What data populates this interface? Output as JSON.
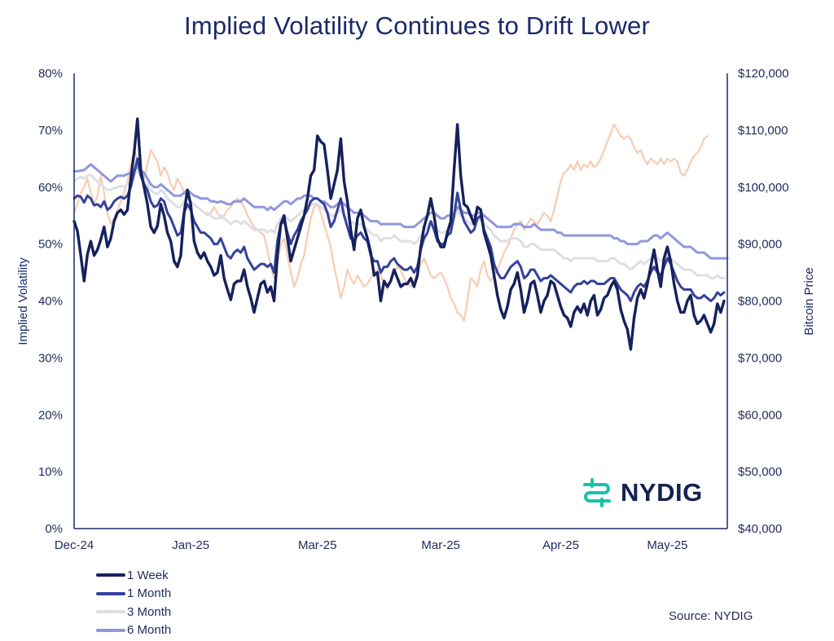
{
  "chart_data": {
    "type": "line",
    "title": "Implied Volatility Continues to Drift Lower",
    "ylabel": "Implied Volatility",
    "y2label": "Bitcoin Price",
    "ylim": [
      0,
      80
    ],
    "y2lim": [
      40000,
      120000
    ],
    "y_ticks": [
      "0%",
      "10%",
      "20%",
      "30%",
      "40%",
      "50%",
      "60%",
      "70%",
      "80%"
    ],
    "y2_ticks": [
      "$40,000",
      "$50,000",
      "$60,000",
      "$70,000",
      "$80,000",
      "$90,000",
      "$100,000",
      "$110,000",
      "$120,000"
    ],
    "x_ticks": [
      "Dec-24",
      "Jan-25",
      "Mar-25",
      "Mar-25",
      "Apr-25",
      "May-25"
    ],
    "x_tick_index": [
      0,
      35,
      73,
      110,
      146,
      178
    ],
    "grid": false,
    "legend_position": "bottom-left",
    "source": "Source: NYDIG",
    "series": [
      {
        "name": "1 Week",
        "color": "#15215c",
        "values": [
          54.0,
          52.3,
          48.0,
          43.5,
          48.2,
          50.5,
          48.0,
          49.0,
          50.8,
          53.0,
          49.5,
          51.0,
          54.0,
          55.5,
          56.0,
          55.2,
          56.0,
          61.5,
          66.0,
          72.0,
          63.0,
          60.0,
          57.0,
          53.0,
          52.0,
          53.2,
          57.0,
          55.0,
          52.0,
          50.5,
          47.0,
          46.0,
          48.0,
          55.5,
          59.5,
          57.0,
          50.5,
          48.5,
          47.5,
          48.5,
          47.0,
          46.0,
          44.5,
          45.0,
          48.0,
          44.0,
          42.0,
          40.2,
          43.0,
          43.5,
          43.5,
          45.5,
          42.5,
          40.5,
          38.0,
          40.5,
          43.0,
          43.5,
          41.5,
          42.5,
          40.0,
          48.0,
          53.5,
          55.0,
          51.0,
          47.0,
          49.0,
          51.0,
          53.0,
          55.0,
          58.0,
          62.0,
          63.0,
          69.0,
          68.0,
          67.5,
          63.0,
          58.0,
          60.5,
          63.0,
          68.5,
          61.0,
          57.5,
          52.5,
          49.0,
          54.5,
          56.0,
          53.0,
          51.0,
          48.5,
          44.5,
          45.0,
          40.0,
          43.5,
          42.5,
          43.5,
          45.5,
          44.0,
          42.5,
          43.0,
          43.0,
          44.0,
          42.5,
          44.5,
          49.5,
          53.0,
          55.0,
          58.0,
          55.0,
          51.0,
          49.5,
          49.5,
          52.0,
          54.0,
          63.0,
          71.0,
          62.0,
          57.0,
          56.5,
          55.0,
          53.5,
          56.5,
          56.0,
          52.0,
          50.0,
          48.0,
          44.5,
          41.0,
          38.5,
          37.0,
          39.0,
          42.0,
          43.0,
          45.0,
          42.0,
          38.0,
          40.0,
          43.0,
          43.5,
          41.0,
          38.0,
          40.0,
          41.0,
          43.5,
          43.0,
          41.0,
          39.0,
          37.5,
          37.0,
          35.5,
          38.0,
          39.0,
          38.0,
          39.5,
          37.5,
          40.0,
          41.0,
          37.5,
          38.5,
          40.5,
          41.0,
          42.5,
          43.5,
          42.0,
          38.5,
          36.5,
          35.0,
          31.5,
          37.0,
          40.5,
          42.0,
          40.5,
          43.0,
          46.0,
          49.0,
          45.5,
          42.5,
          47.5,
          49.5,
          47.0,
          43.0,
          40.0,
          38.0,
          38.0,
          40.0,
          41.0,
          37.5,
          36.0,
          36.5,
          37.5,
          36.0,
          34.5,
          36.0,
          39.5,
          38.0,
          40.0
        ]
      },
      {
        "name": "1 Month",
        "color": "#34419a",
        "values": [
          58.0,
          58.5,
          58.3,
          57.3,
          58.5,
          58.0,
          56.8,
          57.0,
          56.5,
          57.5,
          56.0,
          56.5,
          57.5,
          58.0,
          58.3,
          58.0,
          58.5,
          60.0,
          62.5,
          65.0,
          62.0,
          60.5,
          59.5,
          57.5,
          56.5,
          56.8,
          58.0,
          57.5,
          55.5,
          54.5,
          53.0,
          51.5,
          52.0,
          55.5,
          57.0,
          56.0,
          54.0,
          53.0,
          52.0,
          52.0,
          51.5,
          51.0,
          50.0,
          50.0,
          51.0,
          49.5,
          48.0,
          47.5,
          48.5,
          49.0,
          48.5,
          49.5,
          47.5,
          46.5,
          45.5,
          46.0,
          46.5,
          46.5,
          46.0,
          46.5,
          45.0,
          50.5,
          53.5,
          54.0,
          52.0,
          50.0,
          51.5,
          52.5,
          54.0,
          55.0,
          56.0,
          57.5,
          58.0,
          58.0,
          57.5,
          57.0,
          55.5,
          53.0,
          54.0,
          56.0,
          58.0,
          55.0,
          53.0,
          51.0,
          50.5,
          51.5,
          52.0,
          51.0,
          50.5,
          48.0,
          47.0,
          47.0,
          45.0,
          46.0,
          46.0,
          47.0,
          47.5,
          46.5,
          46.0,
          45.5,
          45.5,
          46.0,
          45.0,
          46.0,
          49.0,
          51.0,
          52.0,
          54.0,
          52.5,
          50.5,
          50.0,
          50.0,
          51.5,
          52.0,
          55.0,
          59.0,
          56.0,
          54.0,
          53.0,
          52.0,
          52.5,
          54.5,
          55.0,
          52.5,
          51.0,
          49.5,
          46.5,
          45.0,
          44.0,
          44.0,
          45.0,
          46.0,
          46.5,
          47.0,
          46.0,
          44.0,
          44.5,
          45.5,
          45.5,
          44.5,
          43.5,
          44.0,
          44.0,
          44.5,
          44.0,
          43.5,
          43.0,
          42.5,
          42.0,
          41.5,
          42.5,
          43.0,
          43.0,
          43.5,
          43.0,
          43.5,
          43.5,
          43.0,
          43.0,
          43.0,
          43.5,
          44.0,
          44.0,
          43.0,
          42.0,
          41.5,
          41.0,
          40.0,
          41.5,
          42.5,
          43.0,
          42.5,
          43.5,
          45.0,
          46.0,
          45.0,
          44.5,
          46.0,
          47.5,
          46.5,
          45.0,
          43.5,
          42.5,
          42.0,
          42.0,
          42.0,
          41.0,
          40.5,
          40.5,
          41.0,
          40.5,
          40.0,
          40.5,
          41.5,
          41.0,
          41.5
        ]
      },
      {
        "name": "3 Month",
        "color": "#dedfe4",
        "values": [
          61.0,
          61.5,
          61.8,
          61.5,
          62.0,
          62.2,
          61.5,
          61.0,
          60.5,
          60.0,
          59.5,
          59.5,
          59.8,
          60.0,
          60.2,
          60.0,
          60.5,
          61.0,
          62.0,
          63.0,
          62.0,
          61.0,
          60.5,
          59.5,
          59.0,
          58.8,
          59.5,
          59.0,
          58.0,
          57.5,
          57.0,
          56.5,
          56.5,
          57.5,
          58.0,
          57.5,
          57.0,
          56.5,
          56.0,
          55.5,
          55.5,
          55.0,
          54.5,
          54.5,
          55.0,
          54.5,
          54.0,
          53.5,
          54.0,
          54.0,
          53.5,
          54.0,
          53.5,
          53.0,
          52.5,
          52.5,
          52.5,
          52.5,
          52.0,
          52.5,
          52.0,
          53.5,
          54.5,
          55.0,
          54.5,
          54.0,
          54.5,
          55.0,
          55.5,
          56.0,
          56.5,
          57.0,
          57.0,
          57.0,
          56.5,
          56.0,
          55.5,
          55.0,
          55.0,
          55.5,
          56.0,
          55.0,
          54.5,
          54.0,
          53.5,
          53.5,
          53.5,
          53.0,
          52.5,
          52.0,
          51.5,
          51.5,
          50.5,
          51.0,
          51.0,
          51.0,
          51.5,
          51.0,
          50.5,
          50.5,
          50.5,
          50.5,
          50.0,
          50.5,
          51.5,
          52.5,
          53.0,
          54.0,
          53.5,
          52.5,
          52.0,
          52.0,
          52.5,
          53.0,
          54.5,
          56.0,
          55.0,
          54.5,
          54.0,
          53.5,
          53.5,
          54.0,
          54.5,
          53.5,
          53.0,
          52.5,
          51.5,
          51.0,
          50.5,
          50.5,
          50.5,
          51.0,
          51.0,
          51.0,
          50.5,
          49.5,
          49.5,
          50.0,
          50.0,
          49.5,
          49.0,
          49.0,
          49.0,
          49.0,
          49.0,
          48.5,
          48.0,
          47.5,
          47.5,
          47.0,
          47.5,
          47.5,
          47.5,
          47.5,
          47.5,
          47.5,
          47.5,
          47.0,
          47.0,
          47.0,
          47.0,
          47.5,
          47.5,
          47.0,
          46.5,
          46.5,
          46.0,
          45.5,
          46.0,
          46.5,
          47.0,
          46.5,
          47.0,
          47.5,
          48.0,
          47.5,
          47.0,
          47.5,
          48.0,
          47.5,
          47.0,
          46.5,
          46.0,
          45.5,
          45.5,
          45.5,
          45.0,
          44.5,
          44.5,
          44.5,
          44.5,
          44.0,
          44.0,
          44.5,
          44.0,
          44.0
        ]
      },
      {
        "name": "6 Month",
        "color": "#8f97dc",
        "values": [
          62.8,
          62.8,
          62.9,
          63.0,
          63.5,
          64.0,
          63.5,
          63.0,
          62.5,
          62.0,
          61.5,
          61.0,
          61.5,
          62.0,
          62.0,
          62.0,
          62.3,
          62.5,
          63.0,
          63.5,
          63.0,
          62.5,
          61.5,
          60.5,
          60.0,
          60.0,
          60.5,
          60.0,
          59.5,
          59.0,
          58.5,
          58.5,
          58.5,
          59.0,
          59.5,
          59.0,
          58.5,
          58.3,
          58.0,
          58.0,
          58.0,
          57.5,
          57.5,
          57.3,
          57.5,
          57.3,
          57.0,
          57.0,
          57.5,
          57.5,
          57.5,
          58.0,
          57.5,
          57.0,
          56.5,
          56.5,
          56.5,
          56.5,
          56.0,
          56.5,
          56.0,
          56.5,
          57.0,
          57.5,
          57.5,
          57.0,
          57.5,
          58.0,
          58.0,
          58.5,
          58.5,
          58.5,
          58.0,
          58.0,
          57.5,
          57.5,
          57.0,
          56.5,
          56.5,
          57.0,
          57.5,
          57.0,
          56.5,
          56.0,
          55.5,
          55.5,
          55.5,
          55.0,
          54.5,
          54.0,
          54.0,
          54.0,
          53.5,
          53.5,
          53.5,
          53.5,
          53.5,
          53.5,
          53.5,
          53.0,
          53.0,
          53.0,
          53.0,
          53.5,
          54.0,
          54.5,
          55.0,
          55.5,
          55.5,
          55.0,
          54.5,
          54.5,
          55.0,
          55.0,
          55.5,
          56.5,
          56.0,
          55.5,
          55.5,
          55.0,
          55.0,
          55.5,
          55.5,
          55.0,
          54.5,
          54.0,
          53.5,
          53.0,
          53.0,
          53.0,
          53.0,
          53.0,
          53.5,
          53.5,
          53.5,
          53.0,
          53.0,
          53.0,
          53.5,
          53.0,
          52.5,
          52.5,
          52.5,
          52.5,
          52.5,
          52.0,
          52.0,
          51.5,
          51.5,
          51.5,
          51.5,
          51.5,
          51.5,
          51.5,
          51.5,
          51.5,
          51.5,
          51.5,
          51.5,
          51.5,
          51.5,
          51.5,
          51.0,
          51.0,
          50.5,
          50.5,
          50.0,
          50.0,
          50.0,
          50.0,
          50.5,
          50.5,
          50.5,
          51.0,
          51.5,
          51.5,
          51.0,
          51.5,
          52.0,
          51.5,
          51.0,
          50.5,
          50.0,
          49.5,
          49.5,
          49.5,
          49.0,
          48.5,
          48.5,
          48.5,
          48.0,
          47.5,
          47.5,
          47.5,
          47.5,
          47.5,
          47.5
        ]
      },
      {
        "name": "Bitcoin Price",
        "axis": "right",
        "color": "#f7ccb2",
        "values": [
          95500,
          97000,
          99000,
          100000,
          101500,
          99000,
          97000,
          98500,
          102000,
          99000,
          95500,
          93500,
          94500,
          96000,
          97500,
          99000,
          101000,
          104000,
          106500,
          105000,
          103000,
          101500,
          104000,
          106500,
          105500,
          104500,
          102000,
          103500,
          102500,
          100500,
          99500,
          101500,
          100500,
          99000,
          98000,
          97500,
          97000,
          96500,
          96000,
          95500,
          95000,
          95500,
          96500,
          95500,
          94500,
          95000,
          96000,
          96500,
          97500,
          98000,
          97500,
          96500,
          95000,
          94000,
          93000,
          92500,
          92000,
          91500,
          89000,
          86000,
          84000,
          86500,
          90000,
          91000,
          88000,
          85000,
          82500,
          84000,
          86500,
          88000,
          91500,
          94500,
          96500,
          97000,
          95500,
          93500,
          91500,
          89500,
          86000,
          83500,
          80500,
          82500,
          85500,
          84000,
          83000,
          84500,
          83500,
          82500,
          83000,
          84000,
          85000,
          85500,
          84500,
          83000,
          82000,
          83500,
          85000,
          86000,
          85500,
          84000,
          83000,
          82500,
          83500,
          85000,
          86500,
          87500,
          86000,
          84500,
          84000,
          84500,
          85000,
          84000,
          82500,
          80500,
          79500,
          78000,
          77500,
          76500,
          80000,
          84000,
          83500,
          82500,
          85500,
          87000,
          84500,
          83500,
          84500,
          85500,
          87000,
          88500,
          89500,
          91000,
          92500,
          93500,
          94000,
          92500,
          93500,
          94500,
          94000,
          93500,
          94500,
          95500,
          95000,
          94000,
          96000,
          98500,
          101000,
          102500,
          103000,
          104000,
          103000,
          104500,
          103000,
          104000,
          103500,
          104500,
          103500,
          104000,
          105000,
          106500,
          108000,
          109500,
          111000,
          110000,
          109000,
          108500,
          109000,
          108500,
          107000,
          106000,
          106500,
          105000,
          104000,
          105000,
          104500,
          104000,
          105000,
          104000,
          105000,
          104500,
          105000,
          104500,
          102500,
          102000,
          103000,
          104500,
          105500,
          106000,
          107000,
          108500,
          109000
        ]
      }
    ]
  },
  "legend": {
    "items": [
      {
        "label": "1 Week"
      },
      {
        "label": "1 Month"
      },
      {
        "label": "3 Month"
      },
      {
        "label": "6 Month"
      }
    ]
  },
  "logo": {
    "text": "NYDIG",
    "mark_color": "#19c2a9"
  }
}
